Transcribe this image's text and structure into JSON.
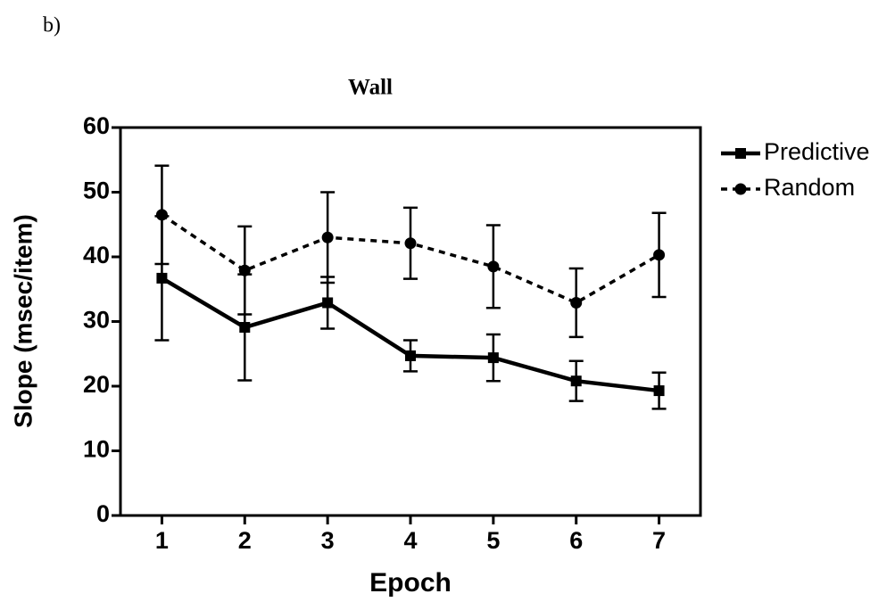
{
  "chart_data": {
    "type": "line",
    "panel_label": "b)",
    "title": "Wall",
    "xlabel": "Epoch",
    "ylabel": "Slope (msec/item)",
    "x": [
      1,
      2,
      3,
      4,
      5,
      6,
      7
    ],
    "xlim": [
      0.5,
      7.5
    ],
    "xticks": [
      1,
      2,
      3,
      4,
      5,
      6,
      7
    ],
    "ylim": [
      0,
      60
    ],
    "yticks": [
      0,
      10,
      20,
      30,
      40,
      50,
      60
    ],
    "grid": false,
    "legend": "right",
    "series": [
      {
        "name": "Predictive",
        "color": "#000000",
        "linestyle": "solid",
        "marker": "square",
        "values": [
          36.7,
          29.1,
          32.9,
          24.7,
          24.4,
          20.8,
          19.3
        ],
        "errors": [
          9.6,
          8.2,
          4.0,
          2.4,
          3.6,
          3.1,
          2.8
        ]
      },
      {
        "name": "Random",
        "color": "#000000",
        "linestyle": "dashed",
        "marker": "circle",
        "values": [
          46.5,
          37.9,
          43.0,
          42.1,
          38.5,
          32.9,
          40.3
        ],
        "errors": [
          7.6,
          6.8,
          7.0,
          5.5,
          6.4,
          5.3,
          6.5
        ]
      }
    ]
  }
}
